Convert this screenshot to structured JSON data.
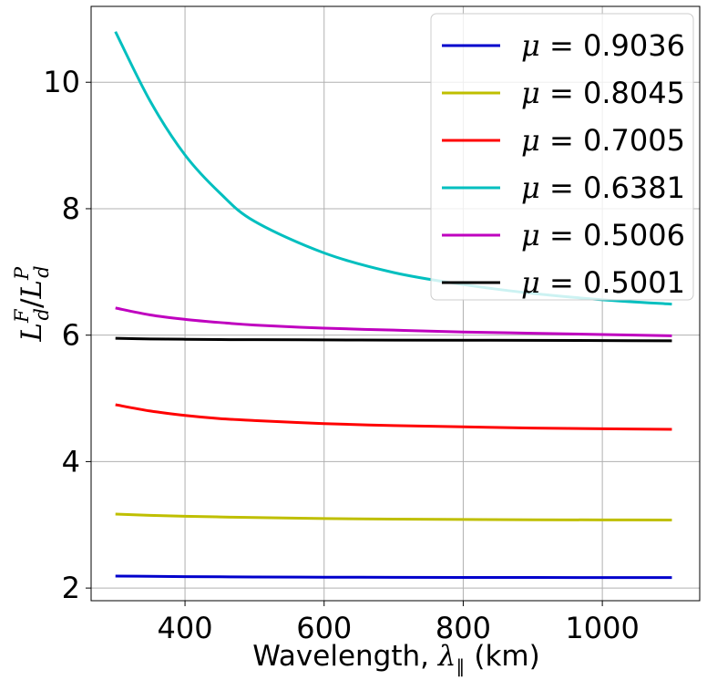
{
  "chart_data": {
    "type": "line",
    "title": "",
    "xlabel": "Wavelength, λ∥ (km)",
    "xlabel_parts": {
      "prefix": "Wavelength, ",
      "symbol": "λ",
      "subscript": "∥",
      "suffix": " (km)"
    },
    "ylabel": "L_d^F/L_d^P",
    "ylabel_parts": {
      "L1": "L",
      "sup1": "F",
      "sub1": "d",
      "slash": "/",
      "L2": "L",
      "sup2": "P",
      "sub2": "d"
    },
    "xlim": [
      265,
      1140
    ],
    "ylim": [
      1.8,
      11.2
    ],
    "xticks": [
      400,
      600,
      800,
      1000
    ],
    "xtick_labels": [
      "400",
      "600",
      "800",
      "1000"
    ],
    "yticks": [
      2,
      4,
      6,
      8,
      10
    ],
    "ytick_labels": [
      "2",
      "4",
      "6",
      "8",
      "10"
    ],
    "grid": true,
    "legend_placement": "top-right",
    "x": [
      300,
      350,
      400,
      450,
      500,
      600,
      700,
      800,
      900,
      1000,
      1100
    ],
    "series": [
      {
        "name": "μ = 0.9036",
        "mu": "0.9036",
        "color": "#0000cc",
        "values": [
          2.19,
          2.185,
          2.18,
          2.178,
          2.175,
          2.172,
          2.17,
          2.168,
          2.167,
          2.166,
          2.165
        ]
      },
      {
        "name": "μ = 0.8045",
        "mu": "0.8045",
        "color": "#bfbf00",
        "values": [
          3.17,
          3.15,
          3.135,
          3.125,
          3.115,
          3.1,
          3.09,
          3.085,
          3.08,
          3.078,
          3.075
        ]
      },
      {
        "name": "μ = 0.7005",
        "mu": "0.7005",
        "color": "#ff0000",
        "values": [
          4.9,
          4.8,
          4.73,
          4.68,
          4.65,
          4.6,
          4.57,
          4.55,
          4.53,
          4.52,
          4.51
        ]
      },
      {
        "name": "μ = 0.6381",
        "mu": "0.6381",
        "color": "#00bfbf",
        "values": [
          10.8,
          9.7,
          8.85,
          8.25,
          7.8,
          7.3,
          6.99,
          6.8,
          6.66,
          6.56,
          6.49
        ]
      },
      {
        "name": "μ = 0.5006",
        "mu": "0.5006",
        "color": "#bf00bf",
        "values": [
          6.43,
          6.32,
          6.25,
          6.2,
          6.16,
          6.11,
          6.08,
          6.05,
          6.03,
          6.01,
          5.99
        ]
      },
      {
        "name": "μ = 0.5001",
        "mu": "0.5001",
        "color": "#000000",
        "values": [
          5.95,
          5.94,
          5.935,
          5.93,
          5.928,
          5.925,
          5.922,
          5.92,
          5.918,
          5.915,
          5.91
        ]
      }
    ]
  }
}
